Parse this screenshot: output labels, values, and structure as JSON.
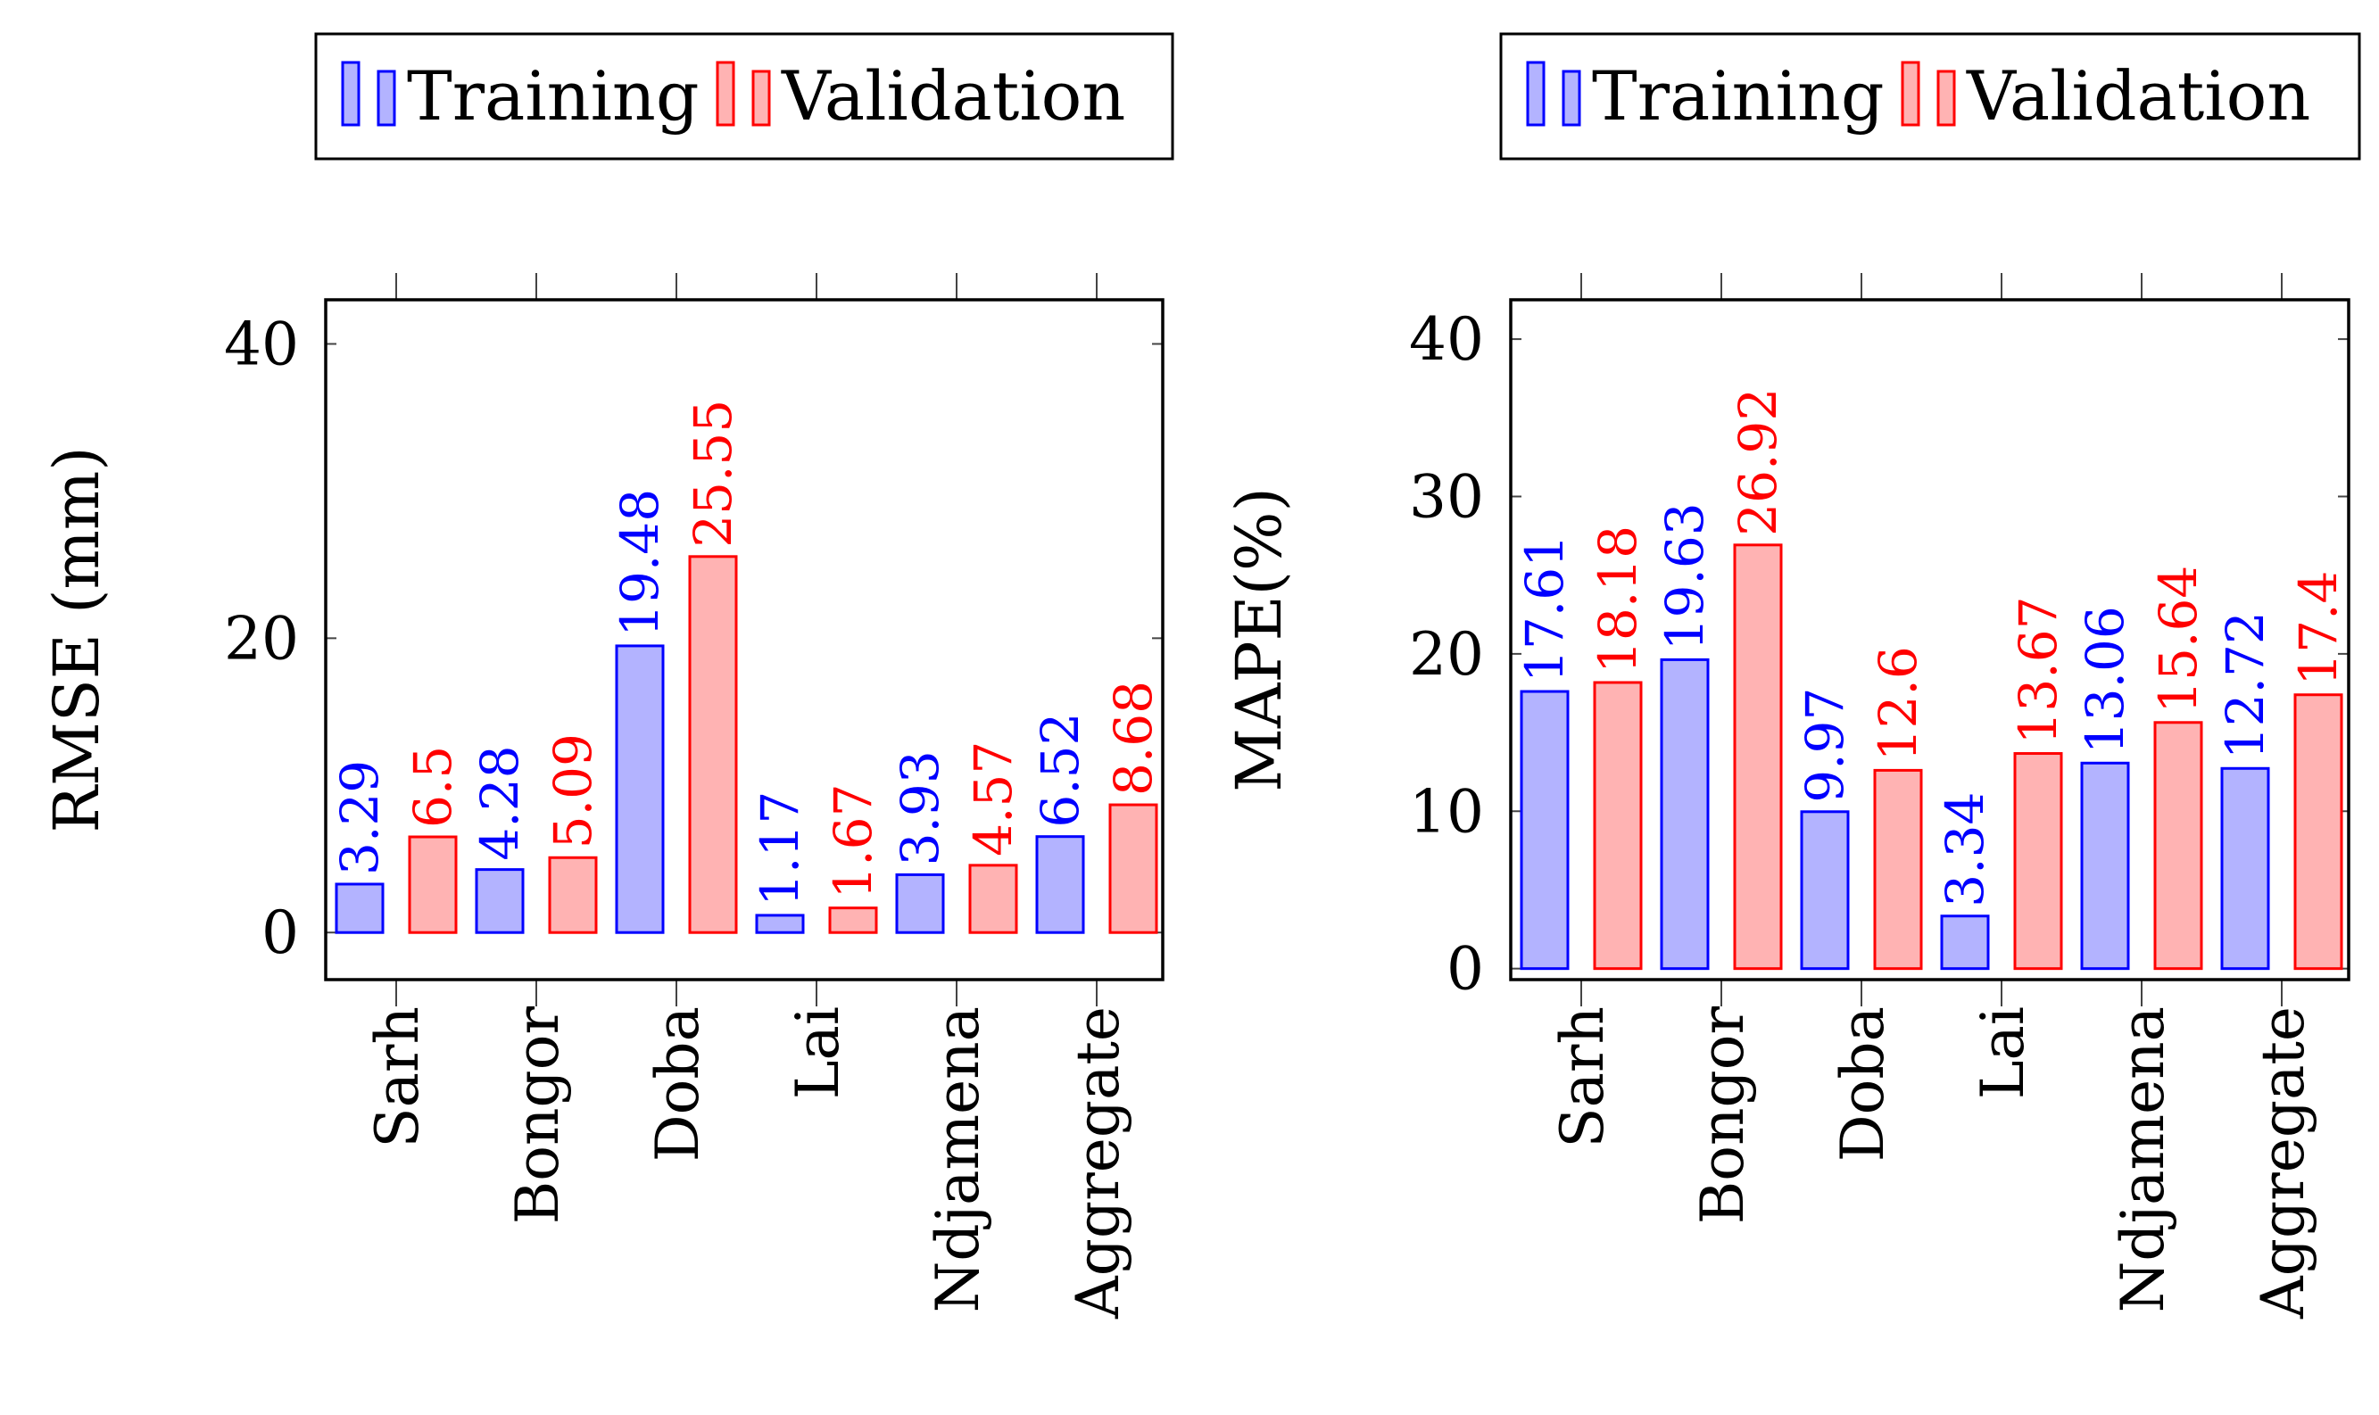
{
  "chart_data": [
    {
      "type": "bar",
      "id": "rmse",
      "ylabel": "RMSE (mm)",
      "xlabel": "",
      "title": "",
      "categories": [
        "Sarh",
        "Bongor",
        "Doba",
        "Lai",
        "Ndjamena",
        "Aggregate"
      ],
      "series": [
        {
          "name": "Training",
          "values": [
            3.29,
            4.28,
            19.48,
            1.17,
            3.93,
            6.52
          ],
          "labels": [
            "3.29",
            "4.28",
            "19.48",
            "1.17",
            "3.93",
            "6.52"
          ]
        },
        {
          "name": "Validation",
          "values": [
            6.5,
            5.09,
            25.55,
            1.67,
            4.57,
            8.68
          ],
          "labels": [
            "6.5",
            "5.09",
            "25.55",
            "1.67",
            "4.57",
            "8.68"
          ]
        }
      ],
      "ylim": [
        -3.2,
        43
      ],
      "yticks": [
        0,
        20,
        40
      ],
      "ytick_labels": [
        "0",
        "20",
        "40"
      ],
      "legend": "top-center"
    },
    {
      "type": "bar",
      "id": "mape",
      "ylabel": "MAPE(%)",
      "xlabel": "",
      "title": "",
      "categories": [
        "Sarh",
        "Bongor",
        "Doba",
        "Lai",
        "Ndjamena",
        "Aggregate"
      ],
      "series": [
        {
          "name": "Training",
          "values": [
            17.61,
            19.63,
            9.97,
            3.34,
            13.06,
            12.72
          ],
          "labels": [
            "17.61",
            "19.63",
            "9.97",
            "3.34",
            "13.06",
            "12.72"
          ]
        },
        {
          "name": "Validation",
          "values": [
            18.18,
            26.92,
            12.6,
            13.67,
            15.64,
            17.4
          ],
          "labels": [
            "18.18",
            "26.92",
            "12.6",
            "13.67",
            "15.64",
            "17.4"
          ]
        }
      ],
      "ylim": [
        -0.7,
        42.5
      ],
      "yticks": [
        0,
        10,
        20,
        30,
        40
      ],
      "ytick_labels": [
        "0",
        "10",
        "20",
        "30",
        "40"
      ],
      "legend": "top-center"
    }
  ],
  "colors": {
    "training_fill": "#b3b3ff",
    "training_stroke": "#0000ff",
    "validation_fill": "#ffb3b3",
    "validation_stroke": "#ff0000",
    "training_text": "#0000ff",
    "validation_text": "#ff0000"
  }
}
